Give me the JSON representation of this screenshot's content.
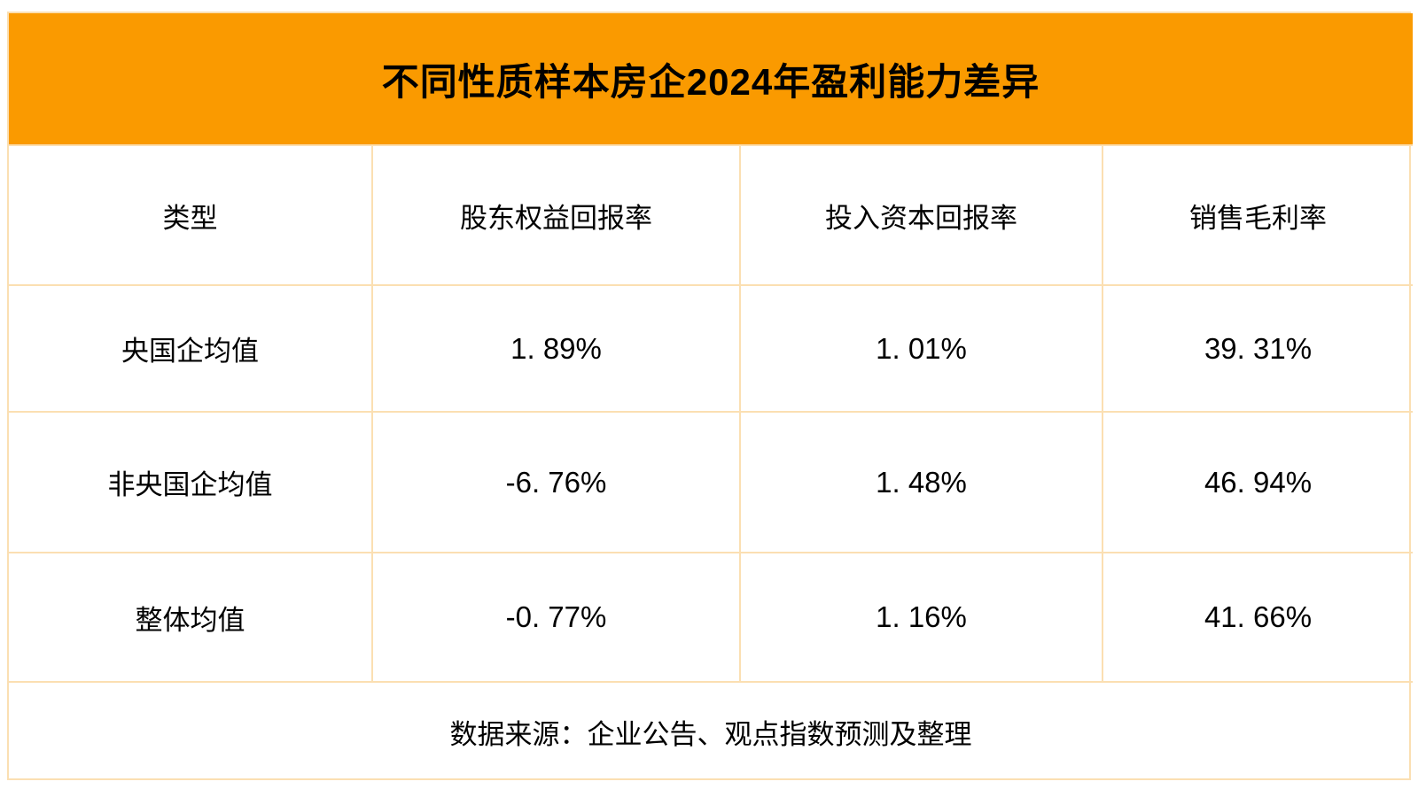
{
  "title": "不同性质样本房企2024年盈利能力差异",
  "colors": {
    "header_bg": "#FA9A00",
    "border": "#FBDFB2",
    "text": "#000000"
  },
  "table": {
    "columns": [
      "类型",
      "股东权益回报率",
      "投入资本回报率",
      "销售毛利率"
    ],
    "rows": [
      {
        "label": "央国企均值",
        "values": [
          "1. 89%",
          "1. 01%",
          "39. 31%"
        ]
      },
      {
        "label": "非央国企均值",
        "values": [
          "-6. 76%",
          "1. 48%",
          "46. 94%"
        ]
      },
      {
        "label": "整体均值",
        "values": [
          "-0. 77%",
          "1. 16%",
          "41. 66%"
        ]
      }
    ],
    "source_note": "数据来源：企业公告、观点指数预测及整理"
  },
  "chart_data": {
    "type": "table",
    "title": "不同性质样本房企2024年盈利能力差异",
    "columns": [
      "类型",
      "股东权益回报率",
      "投入资本回报率",
      "销售毛利率"
    ],
    "unit": "%",
    "rows": [
      [
        "央国企均值",
        1.89,
        1.01,
        39.31
      ],
      [
        "非央国企均值",
        -6.76,
        1.48,
        46.94
      ],
      [
        "整体均值",
        -0.77,
        1.16,
        41.66
      ]
    ],
    "source": "数据来源：企业公告、观点指数预测及整理"
  }
}
